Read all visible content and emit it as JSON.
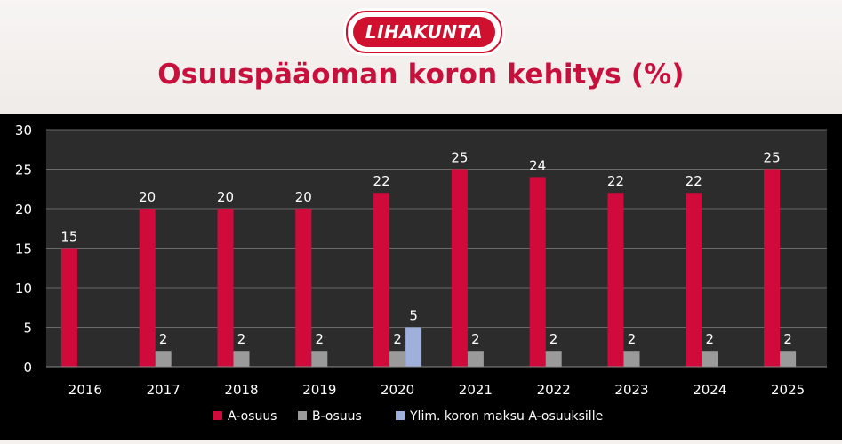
{
  "header": {
    "logo_text": "LIHAKUNTA",
    "title": "Osuuspääoman koron kehitys (%)"
  },
  "colors": {
    "a_osuus": "#d10a3c",
    "b_osuus": "#9a9a9a",
    "ylim": "#9fb0dc",
    "title": "#c8103c",
    "logo": "#d0102f"
  },
  "chart_data": {
    "type": "bar",
    "categories": [
      "2016",
      "2017",
      "2018",
      "2019",
      "2020",
      "2021",
      "2022",
      "2023",
      "2024",
      "2025"
    ],
    "series": [
      {
        "name": "A-osuus",
        "values": [
          15,
          20,
          20,
          20,
          22,
          25,
          24,
          22,
          22,
          25
        ]
      },
      {
        "name": "B-osuus",
        "values": [
          null,
          2,
          2,
          2,
          2,
          2,
          2,
          2,
          2,
          2
        ]
      },
      {
        "name": "Ylim. koron maksu A-osuuksille",
        "values": [
          null,
          null,
          null,
          null,
          5,
          null,
          null,
          null,
          null,
          null
        ]
      }
    ],
    "ylim": [
      0,
      30
    ],
    "yticks": [
      0,
      5,
      10,
      15,
      20,
      25,
      30
    ],
    "grid": true,
    "legend_position": "bottom",
    "xlabel": "",
    "ylabel": ""
  }
}
